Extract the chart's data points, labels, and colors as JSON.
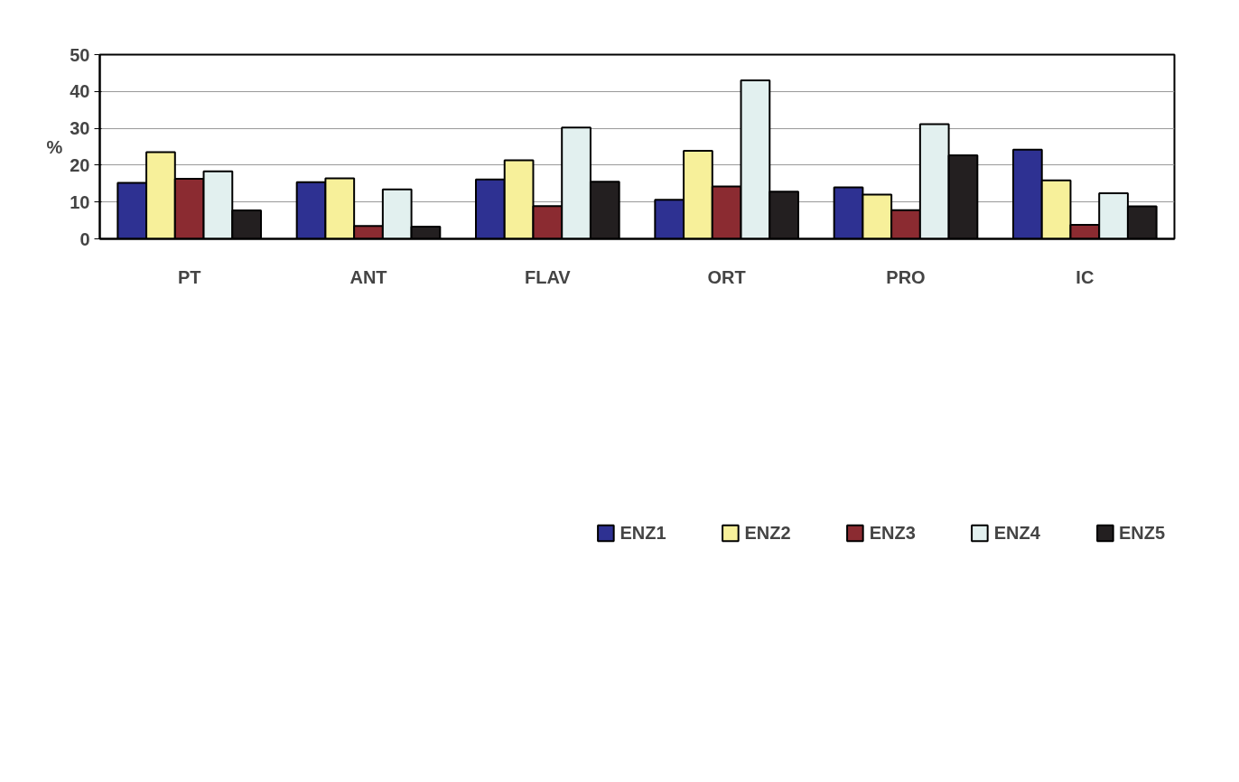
{
  "chart_data": {
    "type": "bar",
    "ylabel": "%",
    "categories": [
      "PT",
      "ANT",
      "FLAV",
      "ORT",
      "PRO",
      "IC"
    ],
    "series": [
      {
        "name": "ENZ1",
        "color": "#2e3192",
        "values": [
          15.2,
          15.4,
          16.1,
          10.6,
          14.0,
          24.2
        ]
      },
      {
        "name": "ENZ2",
        "color": "#f7f09a",
        "values": [
          23.5,
          16.4,
          21.3,
          23.9,
          12.0,
          15.9
        ]
      },
      {
        "name": "ENZ3",
        "color": "#8b2b31",
        "values": [
          16.3,
          3.5,
          8.9,
          14.2,
          7.8,
          3.8
        ]
      },
      {
        "name": "ENZ4",
        "color": "#e2f0ef",
        "values": [
          18.3,
          13.4,
          30.2,
          43.0,
          31.1,
          12.4
        ]
      },
      {
        "name": "ENZ5",
        "color": "#231f20",
        "values": [
          7.7,
          3.3,
          15.5,
          12.8,
          22.7,
          8.8
        ]
      }
    ],
    "ylim": [
      0,
      50
    ],
    "yticks": [
      0,
      10,
      20,
      30,
      40,
      50
    ],
    "grid": "y",
    "legend": "bottom"
  }
}
